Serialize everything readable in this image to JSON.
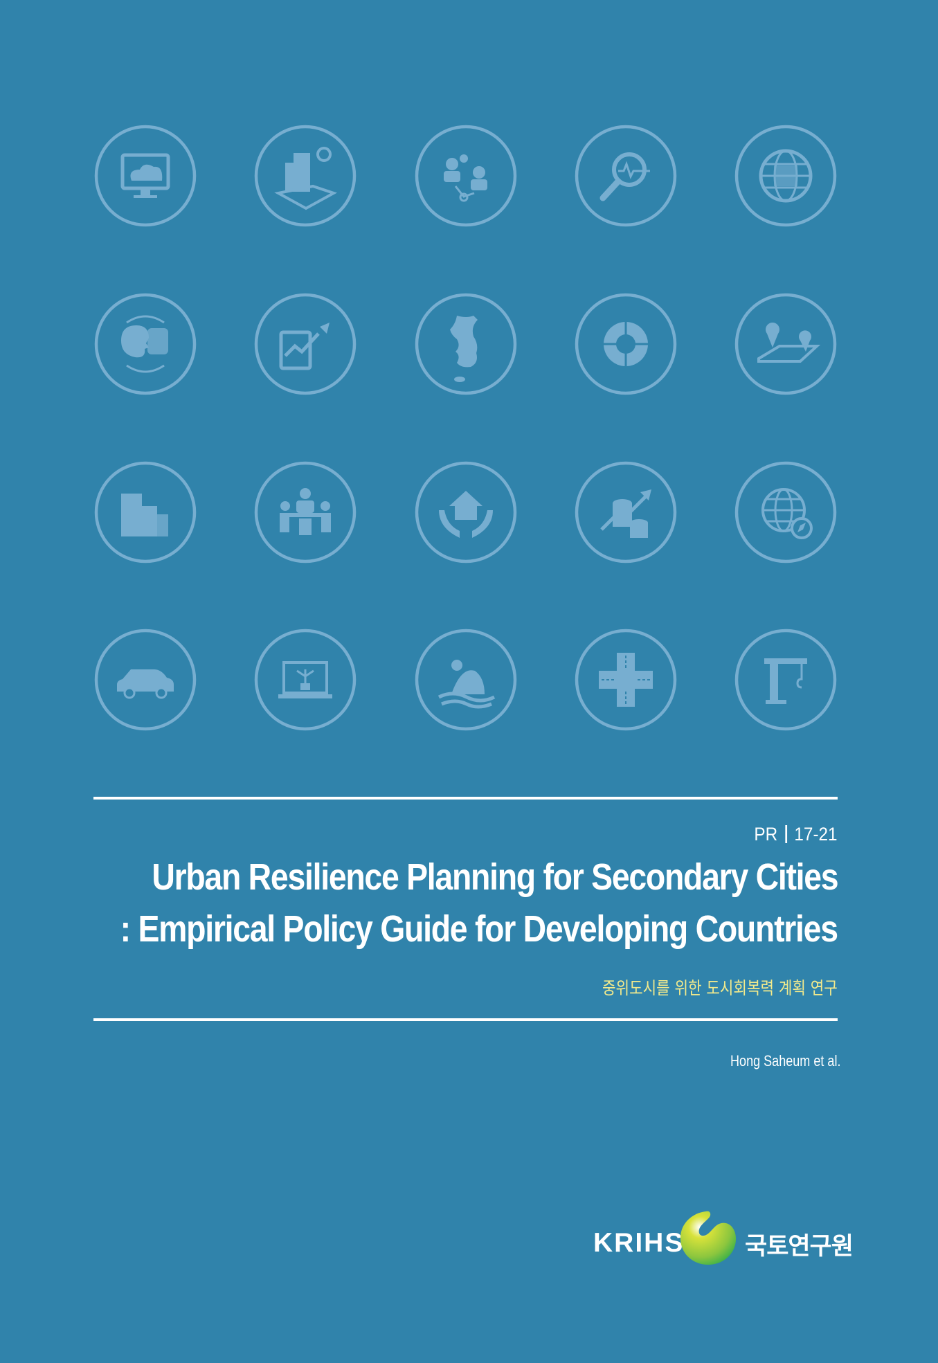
{
  "icons": [
    "cloud-monitor-icon",
    "smart-city-building-icon",
    "people-network-icon",
    "search-analytics-icon",
    "binary-globe-icon",
    "dialogue-heads-icon",
    "tablet-growth-chart-icon",
    "korea-map-icon",
    "data-pie-chart-icon",
    "map-location-pins-icon",
    "city-buildings-icon",
    "meeting-table-icon",
    "house-in-hands-icon",
    "coins-growth-icon",
    "globe-compass-icon",
    "car-icon",
    "laptop-network-icon",
    "sun-mountain-water-icon",
    "road-intersection-icon",
    "construction-crane-icon"
  ],
  "colors": {
    "background": "#3083ab",
    "icon": "#77aed0",
    "subtitle_korean": "#f2ea8c"
  },
  "series": {
    "prefix": "PR",
    "number": "17-21"
  },
  "title": {
    "line1": "Urban Resilience Planning for Secondary Cities",
    "line2": ": Empirical Policy Guide for Developing Countries"
  },
  "korean_title": "중위도시를 위한 도시회복력 계획 연구",
  "author": "Hong Saheum et al.",
  "logo": {
    "english": "KRIHS",
    "korean": "국토연구원"
  }
}
